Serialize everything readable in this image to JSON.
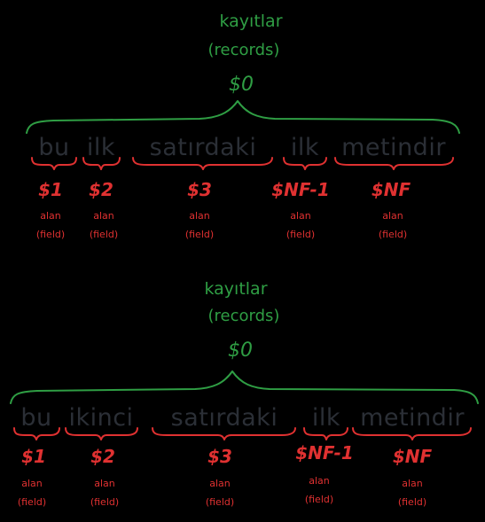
{
  "blocks": [
    {
      "record_title": "kayıtlar",
      "record_subtitle": "(records)",
      "record_var": "$0",
      "fields": [
        {
          "word": "bu",
          "var": "$1",
          "label": "alan",
          "label_en": "(field)"
        },
        {
          "word": "ilk",
          "var": "$2",
          "label": "alan",
          "label_en": "(field)"
        },
        {
          "word": "satırdaki",
          "var": "$3",
          "label": "alan",
          "label_en": "(field)"
        },
        {
          "word": "ilk",
          "var": "$NF-1",
          "label": "alan",
          "label_en": "(field)"
        },
        {
          "word": "metindir",
          "var": "$NF",
          "label": "alan",
          "label_en": "(field)"
        }
      ]
    },
    {
      "record_title": "kayıtlar",
      "record_subtitle": "(records)",
      "record_var": "$0",
      "fields": [
        {
          "word": "bu",
          "var": "$1",
          "label": "alan",
          "label_en": "(field)"
        },
        {
          "word": "ikinci",
          "var": "$2",
          "label": "alan",
          "label_en": "(field)"
        },
        {
          "word": "satırdaki",
          "var": "$3",
          "label": "alan",
          "label_en": "(field)"
        },
        {
          "word": "ilk",
          "var": "$NF-1",
          "label": "alan",
          "label_en": "(field)"
        },
        {
          "word": "metindir",
          "var": "$NF",
          "label": "alan",
          "label_en": "(field)"
        }
      ]
    }
  ],
  "colors": {
    "background": "#000000",
    "record": "#2f9e44",
    "field": "#e03131",
    "word": "#2b2f36"
  }
}
